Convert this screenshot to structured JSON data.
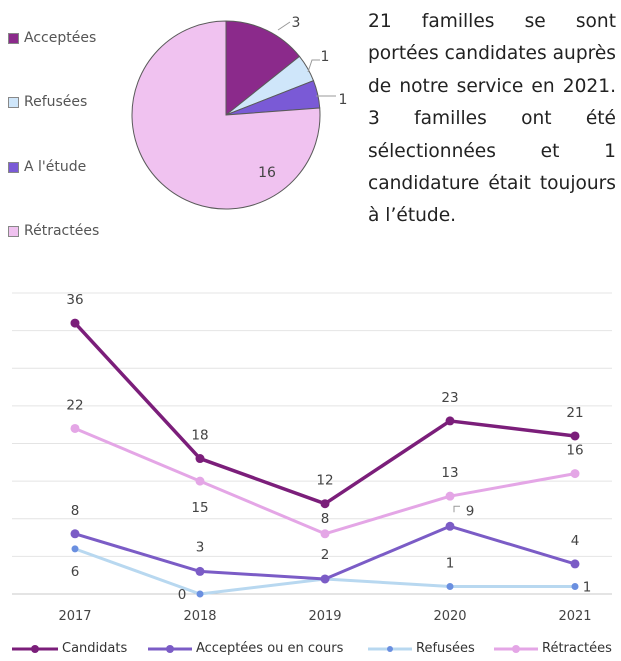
{
  "colors": {
    "candidats": "#7B1E7A",
    "acceptees": "#7B5CC6",
    "refusees": "#B8D8F0",
    "retractees": "#E4A6E6",
    "pie_acceptees": "#8B2A8B",
    "pie_refusees": "#CFE6FA",
    "pie_etude": "#7A5AD6",
    "pie_retractees": "#F0C2F0"
  },
  "paragraph": "21 familles se sont portées candidates auprès de notre service en 2021. 3 familles ont été sélectionnées et 1 candidature était toujours à l’étude.",
  "chart_data": [
    {
      "type": "pie",
      "categories": [
        "Acceptées",
        "Refusées",
        "A l'étude",
        "Rétractées"
      ],
      "values": [
        3,
        1,
        1,
        16
      ],
      "data_labels": [
        "3",
        "1",
        "1",
        "16"
      ],
      "legend": "left"
    },
    {
      "type": "line",
      "categories": [
        "2017",
        "2018",
        "2019",
        "2020",
        "2021"
      ],
      "series": [
        {
          "name": "Candidats",
          "values": [
            36,
            18,
            12,
            23,
            21
          ],
          "labels": [
            "36",
            "18",
            "12",
            "23",
            "21"
          ]
        },
        {
          "name": "Acceptées ou en cours",
          "values": [
            8,
            3,
            2,
            9,
            4
          ],
          "labels": [
            "8",
            "3",
            "2",
            "9",
            "4"
          ]
        },
        {
          "name": "Refusées",
          "values": [
            6,
            0,
            2,
            1,
            1
          ],
          "labels": [
            "6",
            "0",
            "",
            "1",
            "1"
          ]
        },
        {
          "name": "Rétractées",
          "values": [
            22,
            15,
            8,
            13,
            16
          ],
          "labels": [
            "22",
            "15",
            "8",
            "13",
            "16"
          ]
        }
      ],
      "ylim": [
        0,
        40
      ],
      "grid": true,
      "legend": "bottom"
    }
  ]
}
